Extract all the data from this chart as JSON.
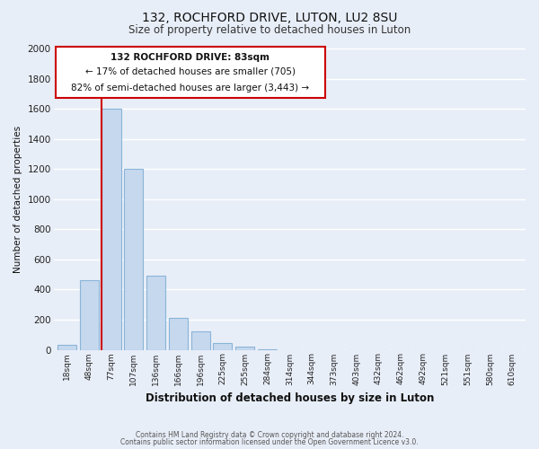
{
  "title": "132, ROCHFORD DRIVE, LUTON, LU2 8SU",
  "subtitle": "Size of property relative to detached houses in Luton",
  "xlabel": "Distribution of detached houses by size in Luton",
  "ylabel": "Number of detached properties",
  "bar_color": "#c5d8ee",
  "bar_edge_color": "#8ab4d8",
  "background_color": "#e8eef8",
  "grid_color": "#ffffff",
  "annotation_box_color": "#ffffff",
  "annotation_box_edge": "#cc0000",
  "annotation_line_color": "#cc0000",
  "annotation_text_line1": "132 ROCHFORD DRIVE: 83sqm",
  "annotation_text_line2": "← 17% of detached houses are smaller (705)",
  "annotation_text_line3": "82% of semi-detached houses are larger (3,443) →",
  "categories": [
    "18sqm",
    "48sqm",
    "77sqm",
    "107sqm",
    "136sqm",
    "166sqm",
    "196sqm",
    "225sqm",
    "255sqm",
    "284sqm",
    "314sqm",
    "344sqm",
    "373sqm",
    "403sqm",
    "432sqm",
    "462sqm",
    "492sqm",
    "521sqm",
    "551sqm",
    "580sqm",
    "610sqm"
  ],
  "values": [
    35,
    460,
    1600,
    1200,
    490,
    210,
    120,
    45,
    20,
    5,
    0,
    0,
    0,
    0,
    0,
    0,
    0,
    0,
    0,
    0,
    0
  ],
  "ylim": [
    0,
    2000
  ],
  "yticks": [
    0,
    200,
    400,
    600,
    800,
    1000,
    1200,
    1400,
    1600,
    1800,
    2000
  ],
  "footer_line1": "Contains HM Land Registry data © Crown copyright and database right 2024.",
  "footer_line2": "Contains public sector information licensed under the Open Government Licence v3.0."
}
